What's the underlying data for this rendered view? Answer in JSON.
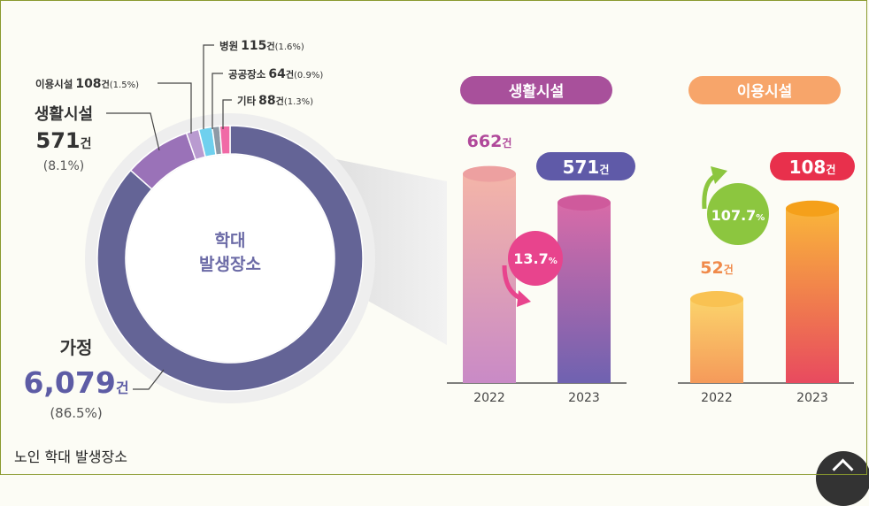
{
  "chart_data": [
    {
      "type": "pie",
      "title": "학대 발생장소",
      "center_label_lines": [
        "학대",
        "발생장소"
      ],
      "slices": [
        {
          "name": "가정",
          "value": 6079,
          "unit": "건",
          "percent": "86.5%",
          "color": "#646496"
        },
        {
          "name": "생활시설",
          "value": 571,
          "unit": "건",
          "percent": "8.1%",
          "color": "#9a72b8"
        },
        {
          "name": "이용시설",
          "value": 108,
          "unit": "건",
          "percent": "1.5%",
          "color": "#b99bd0"
        },
        {
          "name": "병원",
          "value": 115,
          "unit": "건",
          "percent": "1.6%",
          "color": "#6fd0ee"
        },
        {
          "name": "공공장소",
          "value": 64,
          "unit": "건",
          "percent": "0.9%",
          "color": "#8e9aa6"
        },
        {
          "name": "기타",
          "value": 88,
          "unit": "건",
          "percent": "1.3%",
          "color": "#f06aa6"
        }
      ]
    },
    {
      "type": "bar",
      "title": "생활시설",
      "categories": [
        "2022",
        "2023"
      ],
      "values": [
        662,
        571
      ],
      "value_labels": [
        "662",
        "571"
      ],
      "unit": "건",
      "change": "13.7",
      "change_unit": "%",
      "direction": "down",
      "ylim": [
        0,
        700
      ],
      "colors": {
        "title_bg": "#a8509b",
        "badge_bg": "#5f5aa8",
        "circle_bg": "#e8448d"
      }
    },
    {
      "type": "bar",
      "title": "이용시설",
      "categories": [
        "2022",
        "2023"
      ],
      "values": [
        52,
        108
      ],
      "value_labels": [
        "52",
        "108"
      ],
      "unit": "건",
      "change": "107.7",
      "change_unit": "%",
      "direction": "up",
      "ylim": [
        0,
        115
      ],
      "colors": {
        "title_bg": "#f7a56a",
        "badge_bg": "#e8304c",
        "circle_bg": "#8cc63f"
      }
    }
  ],
  "caption": "노인 학대 발생장소"
}
